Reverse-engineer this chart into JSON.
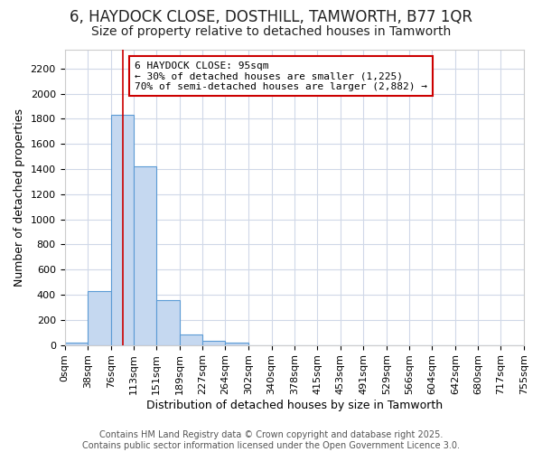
{
  "title_line1": "6, HAYDOCK CLOSE, DOSTHILL, TAMWORTH, B77 1QR",
  "title_line2": "Size of property relative to detached houses in Tamworth",
  "xlabel": "Distribution of detached houses by size in Tamworth",
  "ylabel": "Number of detached properties",
  "bar_color": "#c5d8f0",
  "bar_edge_color": "#5b9bd5",
  "bin_edges": [
    0,
    38,
    76,
    113,
    151,
    189,
    227,
    264,
    302,
    340,
    378,
    415,
    453,
    491,
    529,
    566,
    604,
    642,
    680,
    717,
    755
  ],
  "bin_labels": [
    "0sqm",
    "38sqm",
    "76sqm",
    "113sqm",
    "151sqm",
    "189sqm",
    "227sqm",
    "264sqm",
    "302sqm",
    "340sqm",
    "378sqm",
    "415sqm",
    "453sqm",
    "491sqm",
    "529sqm",
    "566sqm",
    "604sqm",
    "642sqm",
    "680sqm",
    "717sqm",
    "755sqm"
  ],
  "bar_heights": [
    20,
    430,
    1830,
    1420,
    360,
    80,
    30,
    20,
    0,
    0,
    0,
    0,
    0,
    0,
    0,
    0,
    0,
    0,
    0,
    0
  ],
  "property_size": 95,
  "vline_color": "#cc0000",
  "annotation_line1": "6 HAYDOCK CLOSE: 95sqm",
  "annotation_line2": "← 30% of detached houses are smaller (1,225)",
  "annotation_line3": "70% of semi-detached houses are larger (2,882) →",
  "annotation_box_color": "#cc0000",
  "ylim_max": 2350,
  "yticks": [
    0,
    200,
    400,
    600,
    800,
    1000,
    1200,
    1400,
    1600,
    1800,
    2000,
    2200
  ],
  "background_color": "#ffffff",
  "plot_bg_color": "#ffffff",
  "grid_color": "#d0d8e8",
  "footer_line1": "Contains HM Land Registry data © Crown copyright and database right 2025.",
  "footer_line2": "Contains public sector information licensed under the Open Government Licence 3.0.",
  "title_fontsize": 12,
  "subtitle_fontsize": 10,
  "axis_label_fontsize": 9,
  "tick_fontsize": 8,
  "annotation_fontsize": 8,
  "footer_fontsize": 7
}
